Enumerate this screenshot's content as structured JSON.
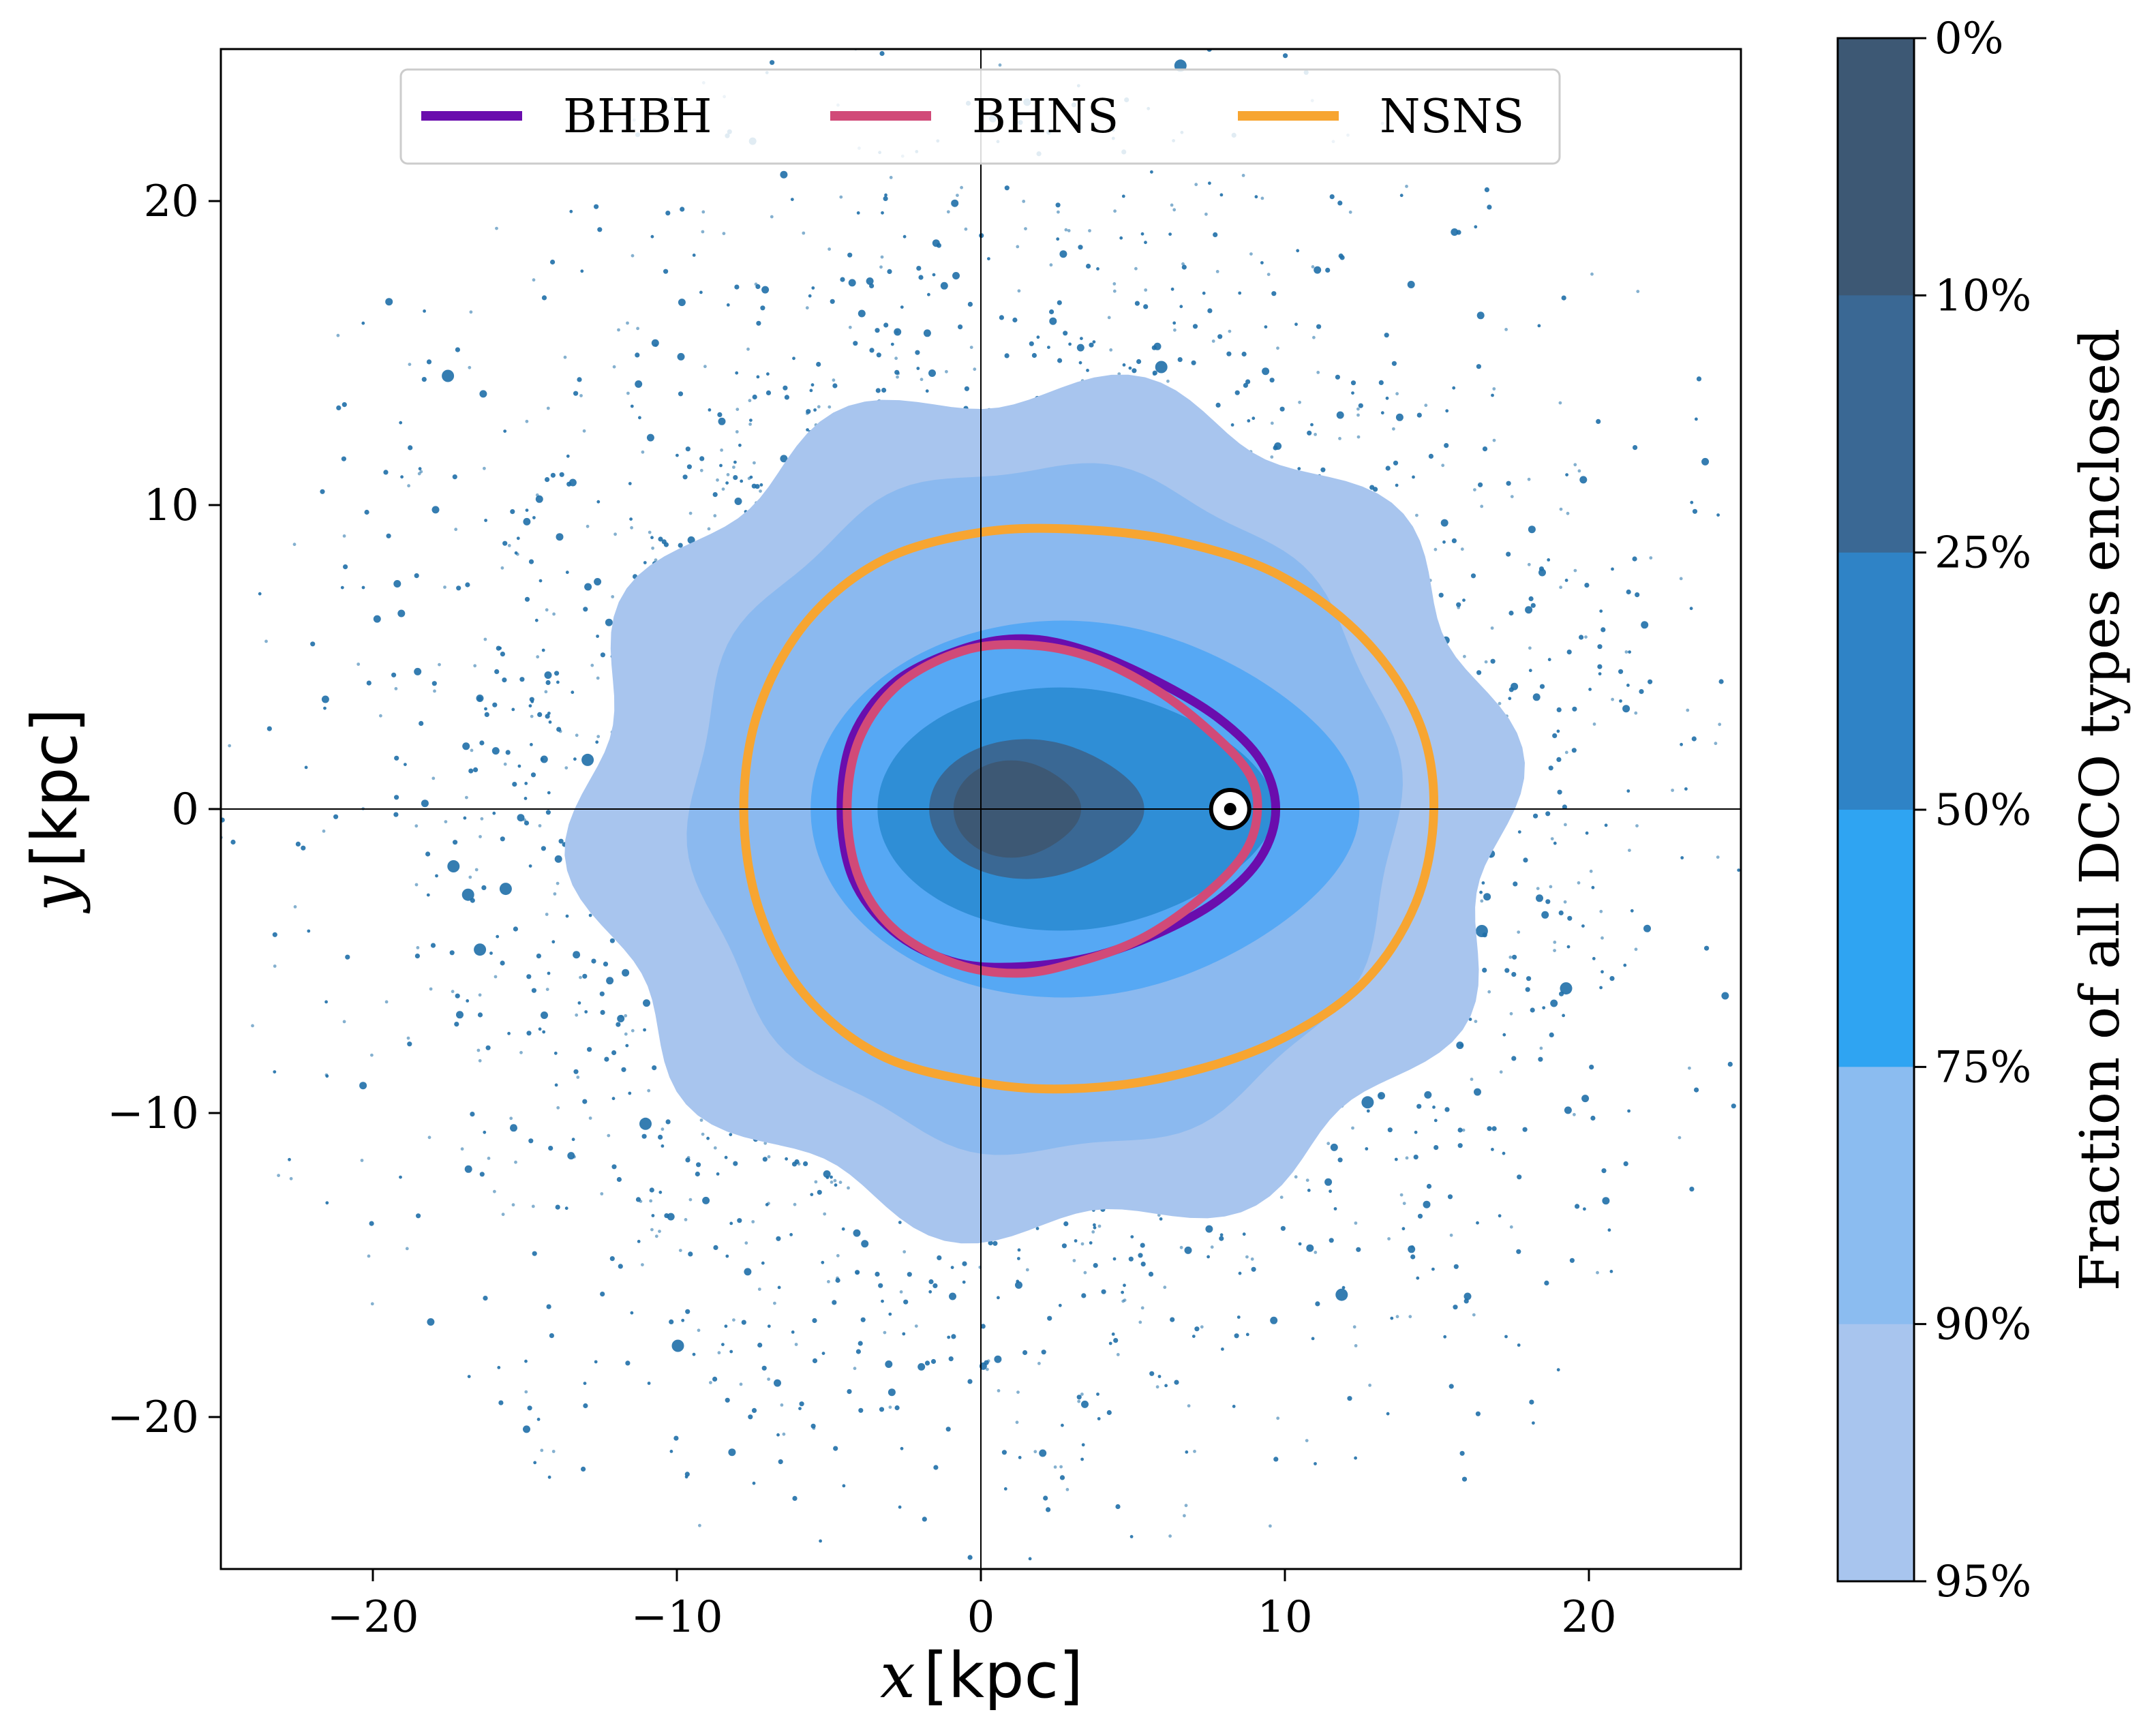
{
  "chart_data": {
    "type": "scatter",
    "xlabel_var": "x",
    "xlabel_unit": "[kpc]",
    "ylabel_var": "y",
    "ylabel_unit": "[kpc]",
    "xlim": [
      -25,
      25
    ],
    "ylim": [
      -25,
      25
    ],
    "x_ticks": [
      -20,
      -10,
      0,
      10,
      20
    ],
    "y_ticks": [
      -20,
      -10,
      0,
      10,
      20
    ],
    "x_tick_labels": [
      "−20",
      "−10",
      "0",
      "10",
      "20"
    ],
    "y_tick_labels": [
      "−20",
      "−10",
      "0",
      "10",
      "20"
    ],
    "reference_lines": {
      "x": 0,
      "y": 0
    },
    "sun_marker": {
      "x": 8.2,
      "y": 0
    },
    "legend": {
      "placement": "top-center",
      "entries": [
        {
          "name": "BHBH",
          "color": "#6a0dad"
        },
        {
          "name": "BHNS",
          "color": "#d14a78"
        },
        {
          "name": "NSNS",
          "color": "#f7a531"
        }
      ]
    },
    "filled_contours": [
      {
        "fraction": "95%",
        "color": "#a8c5ee",
        "center": [
          2.1,
          0
        ],
        "rx": 15.2,
        "ry": 13.9,
        "wobble": 0.045
      },
      {
        "fraction": "90%",
        "color": "#8bb9ef",
        "center": [
          2.1,
          0
        ],
        "rx": 11.6,
        "ry": 11.3,
        "wobble": 0.02
      },
      {
        "fraction": "75%",
        "color": "#56a8f4",
        "center": [
          2.7,
          0
        ],
        "rx": 8.3,
        "ry": 6.2,
        "wobble": 0
      },
      {
        "fraction": "50%",
        "color": "#2f8ed6",
        "center": [
          2.6,
          0
        ],
        "rx": 6.0,
        "ry": 4.0,
        "wobble": 0
      },
      {
        "fraction": "25%",
        "color": "#3a6894",
        "center": [
          1.5,
          0
        ],
        "rx": 3.2,
        "ry": 2.3,
        "wobble": 0
      },
      {
        "fraction": "10%",
        "color": "#3d5874",
        "center": [
          1.0,
          0
        ],
        "rx": 1.9,
        "ry": 1.6,
        "wobble": 0
      }
    ],
    "line_contours": [
      {
        "name": "BHBH",
        "color": "#6a0dad",
        "points": [
          [
            -4.6,
            0
          ],
          [
            -4.2,
            2.4
          ],
          [
            -2.8,
            4.2
          ],
          [
            -0.5,
            5.3
          ],
          [
            1.5,
            5.6
          ],
          [
            3.5,
            5.2
          ],
          [
            5.8,
            4.2
          ],
          [
            7.8,
            3.0
          ],
          [
            9.2,
            1.6
          ],
          [
            9.7,
            0
          ],
          [
            9.2,
            -1.6
          ],
          [
            7.8,
            -3.0
          ],
          [
            5.8,
            -4.1
          ],
          [
            3.5,
            -4.9
          ],
          [
            1.0,
            -5.2
          ],
          [
            -1.0,
            -5.0
          ],
          [
            -2.9,
            -4.0
          ],
          [
            -4.2,
            -2.3
          ]
        ]
      },
      {
        "name": "BHNS",
        "color": "#d14a78",
        "points": [
          [
            -4.4,
            0
          ],
          [
            -4.0,
            2.3
          ],
          [
            -2.7,
            4.1
          ],
          [
            -0.6,
            5.2
          ],
          [
            1.5,
            5.4
          ],
          [
            3.6,
            5.0
          ],
          [
            5.8,
            3.9
          ],
          [
            7.6,
            2.5
          ],
          [
            8.8,
            1.2
          ],
          [
            9.1,
            0
          ],
          [
            8.7,
            -1.4
          ],
          [
            7.4,
            -2.8
          ],
          [
            5.4,
            -4.2
          ],
          [
            3.3,
            -5.0
          ],
          [
            1.3,
            -5.4
          ],
          [
            -0.8,
            -5.1
          ],
          [
            -2.8,
            -4.0
          ],
          [
            -4.0,
            -2.3
          ]
        ]
      },
      {
        "name": "NSNS",
        "color": "#f7a531",
        "points": [
          [
            -7.8,
            0
          ],
          [
            -7.3,
            3.3
          ],
          [
            -5.7,
            6.2
          ],
          [
            -3.2,
            8.2
          ],
          [
            0,
            9.1
          ],
          [
            3.2,
            9.2
          ],
          [
            6.5,
            8.8
          ],
          [
            9.8,
            7.7
          ],
          [
            12.6,
            5.6
          ],
          [
            14.4,
            2.9
          ],
          [
            14.9,
            0
          ],
          [
            14.3,
            -3.1
          ],
          [
            12.5,
            -5.8
          ],
          [
            9.6,
            -7.7
          ],
          [
            6.2,
            -8.8
          ],
          [
            3.0,
            -9.2
          ],
          [
            0,
            -9.0
          ],
          [
            -3.3,
            -8.1
          ],
          [
            -5.8,
            -6.1
          ],
          [
            -7.3,
            -3.3
          ]
        ]
      }
    ],
    "scatter_points": {
      "description_n_points": 2600,
      "color": "#1f6fa8",
      "distribution": "radial, concentrated around 10-20 kpc, extending to 25 kpc"
    },
    "colorbar": {
      "label": "Fraction of all DCO types enclosed",
      "tick_labels": [
        "0%",
        "10%",
        "25%",
        "50%",
        "75%",
        "90%",
        "95%"
      ],
      "bands": [
        {
          "from": "0%",
          "to": "10%",
          "color": "#3d5874"
        },
        {
          "from": "10%",
          "to": "25%",
          "color": "#3a6894"
        },
        {
          "from": "25%",
          "to": "50%",
          "color": "#2f83c6"
        },
        {
          "from": "50%",
          "to": "75%",
          "color": "#2fa4f2"
        },
        {
          "from": "75%",
          "to": "90%",
          "color": "#8bbcf0"
        },
        {
          "from": "90%",
          "to": "95%",
          "color": "#a8c5ee"
        }
      ]
    }
  }
}
